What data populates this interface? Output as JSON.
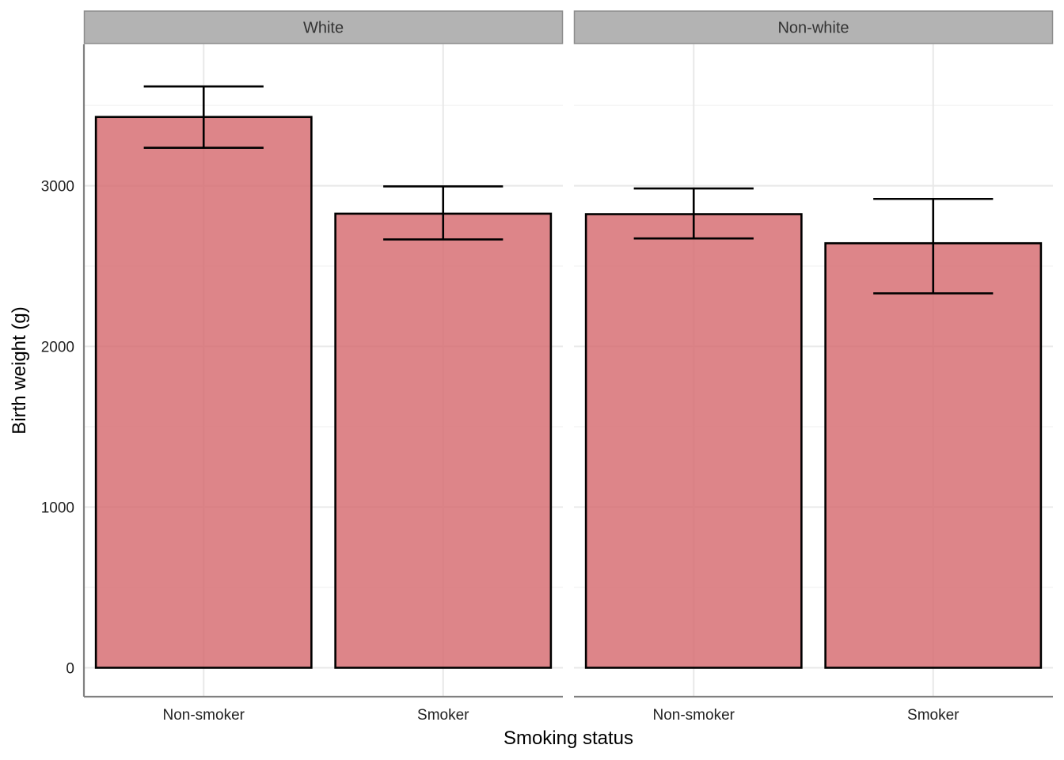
{
  "chart_data": {
    "type": "bar",
    "facets": [
      "White",
      "Non-white"
    ],
    "categories": [
      "Non-smoker",
      "Smoker"
    ],
    "series": [
      {
        "facet": "White",
        "values": [
          3428,
          2826
        ],
        "error_low": [
          3236,
          2666
        ],
        "error_high": [
          3618,
          2996
        ]
      },
      {
        "facet": "Non-white",
        "values": [
          2823,
          2642
        ],
        "error_low": [
          2672,
          2330
        ],
        "error_high": [
          2983,
          2918
        ]
      }
    ],
    "xlabel": "Smoking status",
    "ylabel": "Birth weight (g)",
    "ylim": [
      -180,
      3880
    ],
    "yticks": [
      0,
      1000,
      2000,
      3000
    ],
    "ytick_labels": [
      "0",
      "1000",
      "2000",
      "3000"
    ],
    "grid": true,
    "legend": "none",
    "colors": {
      "bar_fill": "#d4676b",
      "bar_stroke": "#000000",
      "strip_fill": "#b3b3b3",
      "strip_stroke": "#8c8c8c",
      "grid_major": "#e8e8e8",
      "grid_minor": "#f2f2f2",
      "axis_line": "#808080"
    }
  }
}
